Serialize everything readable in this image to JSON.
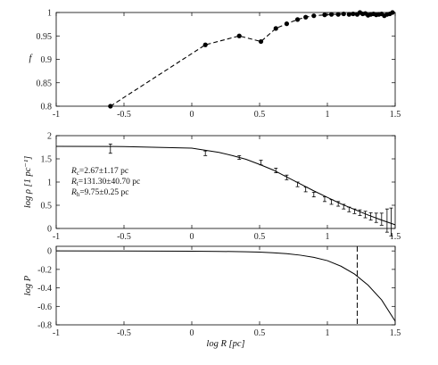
{
  "chart_data": [
    {
      "type": "line",
      "panel": "top",
      "ylabel": "f",
      "xlim": [
        -1,
        1.5
      ],
      "ylim": [
        0.8,
        1.0
      ],
      "xticks": [
        "-1",
        "-0.5",
        "0",
        "0.5",
        "1",
        "1.5"
      ],
      "yticks": [
        "0.8",
        "0.85",
        "0.9",
        "0.95",
        "1"
      ],
      "line_style": "dashed",
      "marker": "filled-circle",
      "x": [
        -0.6,
        0.1,
        0.35,
        0.51,
        0.62,
        0.7,
        0.78,
        0.84,
        0.9,
        0.98,
        1.03,
        1.08,
        1.12,
        1.16,
        1.19,
        1.22,
        1.24,
        1.26,
        1.28,
        1.3,
        1.32,
        1.34,
        1.36,
        1.38,
        1.4,
        1.42,
        1.44,
        1.46,
        1.48
      ],
      "y": [
        0.8,
        0.931,
        0.95,
        0.938,
        0.966,
        0.976,
        0.985,
        0.99,
        0.993,
        0.995,
        0.996,
        0.996,
        0.997,
        0.996,
        0.997,
        0.996,
        1.0,
        0.997,
        0.998,
        0.994,
        0.996,
        0.997,
        0.995,
        0.996,
        0.997,
        0.993,
        0.996,
        0.997,
        1.0
      ]
    },
    {
      "type": "scatter",
      "panel": "middle",
      "ylabel": "log ρ [1 pc⁻¹]",
      "xlim": [
        -1,
        1.5
      ],
      "ylim": [
        0,
        2
      ],
      "xticks": [
        "-1",
        "-0.5",
        "0",
        "0.5",
        "1",
        "1.5"
      ],
      "yticks": [
        "0",
        "0.5",
        "1",
        "1.5",
        "2"
      ],
      "annotations": [
        {
          "main": "R",
          "sub": "c",
          "rest": "=2.67±1.17 pc"
        },
        {
          "main": "R",
          "sub": "t",
          "rest": "=131.30±40.70 pc"
        },
        {
          "main": "R",
          "sub": "h",
          "rest": "=9.75±0.25 pc"
        }
      ],
      "points": {
        "x": [
          -0.6,
          0.1,
          0.35,
          0.51,
          0.62,
          0.7,
          0.78,
          0.84,
          0.9,
          0.98,
          1.03,
          1.08,
          1.12,
          1.16,
          1.2,
          1.24,
          1.28,
          1.32,
          1.36,
          1.4,
          1.44,
          1.47
        ],
        "y": [
          1.72,
          1.62,
          1.53,
          1.42,
          1.25,
          1.1,
          0.95,
          0.84,
          0.73,
          0.63,
          0.57,
          0.53,
          0.47,
          0.41,
          0.37,
          0.34,
          0.3,
          0.26,
          0.23,
          0.2,
          0.17,
          0.14
        ],
        "err": [
          0.1,
          0.05,
          0.04,
          0.05,
          0.05,
          0.05,
          0.05,
          0.05,
          0.05,
          0.05,
          0.05,
          0.05,
          0.05,
          0.05,
          0.05,
          0.06,
          0.07,
          0.08,
          0.1,
          0.13,
          0.25,
          0.3
        ]
      },
      "fit_curve": {
        "x": [
          -1,
          -0.5,
          0,
          0.2,
          0.3,
          0.4,
          0.5,
          0.6,
          0.7,
          0.8,
          0.9,
          1.0,
          1.1,
          1.2,
          1.3,
          1.4,
          1.5
        ],
        "y": [
          1.77,
          1.765,
          1.73,
          1.64,
          1.57,
          1.49,
          1.38,
          1.26,
          1.11,
          0.96,
          0.81,
          0.67,
          0.53,
          0.41,
          0.29,
          0.18,
          0.08
        ]
      }
    },
    {
      "type": "line",
      "panel": "bottom",
      "ylabel": "log P",
      "xlabel": "log R [pc]",
      "xlim": [
        -1,
        1.5
      ],
      "ylim": [
        -0.8,
        0.05
      ],
      "xticks": [
        "-1",
        "-0.5",
        "0",
        "0.5",
        "1",
        "1.5"
      ],
      "yticks": [
        "0",
        "-0.2",
        "-0.4",
        "-0.6",
        "-0.8"
      ],
      "curve": {
        "x": [
          -1,
          -0.5,
          0,
          0.2,
          0.4,
          0.5,
          0.6,
          0.7,
          0.8,
          0.9,
          1.0,
          1.1,
          1.2,
          1.3,
          1.4,
          1.5
        ],
        "y": [
          0.0,
          -0.001,
          -0.003,
          -0.005,
          -0.009,
          -0.013,
          -0.02,
          -0.03,
          -0.046,
          -0.07,
          -0.105,
          -0.165,
          -0.25,
          -0.37,
          -0.53,
          -0.76
        ]
      },
      "vline_x": 1.22
    }
  ]
}
